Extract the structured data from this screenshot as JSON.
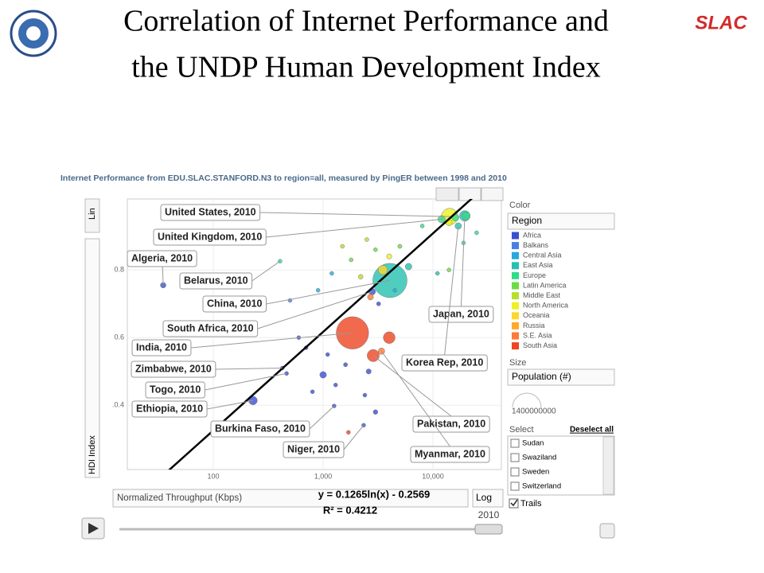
{
  "slide": {
    "title_lines": [
      "Correlation of Internet Performance and",
      "the UNDP Human Development Index"
    ],
    "logo": "SLAC"
  },
  "chart_data": {
    "type": "bubble",
    "header": "Internet Performance from EDU.SLAC.STANFORD.N3 to region=all, measured by PingER between 1998 and 2010",
    "y_scale": "Lin",
    "ylabel": "HDI Index",
    "xlabel": "Normalized Throughput (Kbps)",
    "x_scale": "Log",
    "xlog": true,
    "xlim": [
      16.5,
      42000
    ],
    "ylim": [
      0.21,
      1.01
    ],
    "xticks": [
      100,
      {
        "value": 1000,
        "label": "1,000"
      },
      {
        "value": 10000,
        "label": "10,000"
      }
    ],
    "yticks": [
      {
        "value": 0.4,
        "label": ".0.4"
      },
      {
        "value": 0.6,
        "label": "0.6"
      },
      {
        "value": 0.8,
        "label": "0.8"
      }
    ],
    "color_label": "Color",
    "color_by": "Region",
    "regions": [
      {
        "name": "Africa",
        "color": "#3a4fd0"
      },
      {
        "name": "Balkans",
        "color": "#4a7fe0"
      },
      {
        "name": "Central Asia",
        "color": "#27a9de"
      },
      {
        "name": "East Asia",
        "color": "#25c0b0"
      },
      {
        "name": "Europe",
        "color": "#2fdc8a"
      },
      {
        "name": "Latin America",
        "color": "#6cdc45"
      },
      {
        "name": "Middle East",
        "color": "#b5e02a"
      },
      {
        "name": "North America",
        "color": "#eef022"
      },
      {
        "name": "Oceania",
        "color": "#ffd72a"
      },
      {
        "name": "Russia",
        "color": "#ffaa2a"
      },
      {
        "name": "S.E. Asia",
        "color": "#ff7a35"
      },
      {
        "name": "South Asia",
        "color": "#ee4522"
      }
    ],
    "size_label": "Size",
    "size_by": "Population (#)",
    "size_max_label": "1400000000",
    "select_label": "Select",
    "deselect": "Deselect all",
    "select_items": [
      "Sudan",
      "Swaziland",
      "Sweden",
      "Switzerland"
    ],
    "trails": "Trails",
    "year": "2010",
    "trendline": {
      "equation": "y = 0.1265ln(x) - 0.2569",
      "r2": "R² = 0.4212",
      "slope": 0.1265,
      "intercept": -0.2569
    },
    "points": {
      "names": [
        "China, 2010",
        "India, 2010",
        "United States, 2010",
        "United Kingdom, 2010",
        "Algeria, 2010",
        "Belarus, 2010",
        "South Africa, 2010",
        "Zimbabwe, 2010",
        "Togo, 2010",
        "Ethiopia, 2010",
        "Burkina Faso, 2010",
        "Niger, 2010",
        "Japan, 2010",
        "Korea  Rep, 2010",
        "Pakistan, 2010",
        "Myanmar, 2010",
        null,
        null,
        null,
        null,
        null,
        null,
        null,
        null,
        null,
        null,
        null,
        null,
        null,
        null,
        null,
        null,
        null,
        null,
        null,
        null,
        null,
        null,
        null,
        null,
        null,
        null,
        null,
        null,
        null,
        null,
        null,
        null,
        null,
        null,
        null
      ],
      "x": [
        4060,
        1850,
        14200,
        12000,
        35,
        406,
        2800,
        425,
        465,
        230,
        1260,
        2340,
        19500,
        17000,
        2860,
        3400,
        5000,
        8000,
        16000,
        20000,
        14000,
        25000,
        4000,
        3000,
        2500,
        6000,
        3500,
        2200,
        1800,
        1500,
        1200,
        900,
        2700,
        3200,
        4500,
        19000,
        700,
        1100,
        1600,
        2600,
        800,
        1300,
        3000,
        600,
        1700,
        2400,
        4000,
        1000,
        11000,
        14000,
        500
      ],
      "values": [
        0.769,
        0.614,
        0.958,
        0.95,
        0.755,
        0.826,
        0.736,
        0.51,
        0.494,
        0.414,
        0.398,
        0.341,
        0.96,
        0.93,
        0.547,
        0.56,
        0.87,
        0.93,
        0.955,
        0.96,
        0.94,
        0.91,
        0.84,
        0.86,
        0.89,
        0.81,
        0.8,
        0.78,
        0.83,
        0.87,
        0.79,
        0.74,
        0.72,
        0.7,
        0.74,
        0.88,
        0.57,
        0.55,
        0.52,
        0.5,
        0.44,
        0.46,
        0.38,
        0.6,
        0.32,
        0.43,
        0.6,
        0.49,
        0.79,
        0.8,
        0.71
      ],
      "sizes": [
        1340000000,
        1200000000,
        310000000,
        62000000,
        35000000,
        9500000,
        50000000,
        12000000,
        6000000,
        83000000,
        16000000,
        15000000,
        127000000,
        48000000,
        170000000,
        48000000,
        20000000,
        10000000,
        60000000,
        80000000,
        45000000,
        5000000,
        30000000,
        15000000,
        8000000,
        50000000,
        100000000,
        25000000,
        10000000,
        6000000,
        8000000,
        5000000,
        40000000,
        20000000,
        12000000,
        10000000,
        15000000,
        8000000,
        20000000,
        30000000,
        10000000,
        12000000,
        25000000,
        6000000,
        8000000,
        12000000,
        160000000,
        50000000,
        5000000,
        5000000,
        7000000
      ],
      "regions": [
        3,
        11,
        7,
        4,
        0,
        4,
        0,
        0,
        0,
        0,
        0,
        0,
        3,
        3,
        11,
        10,
        5,
        4,
        4,
        4,
        7,
        4,
        7,
        5,
        6,
        3,
        8,
        6,
        5,
        6,
        2,
        2,
        10,
        0,
        2,
        4,
        0,
        0,
        0,
        0,
        0,
        0,
        0,
        0,
        11,
        0,
        11,
        0,
        3,
        5,
        1
      ]
    }
  }
}
